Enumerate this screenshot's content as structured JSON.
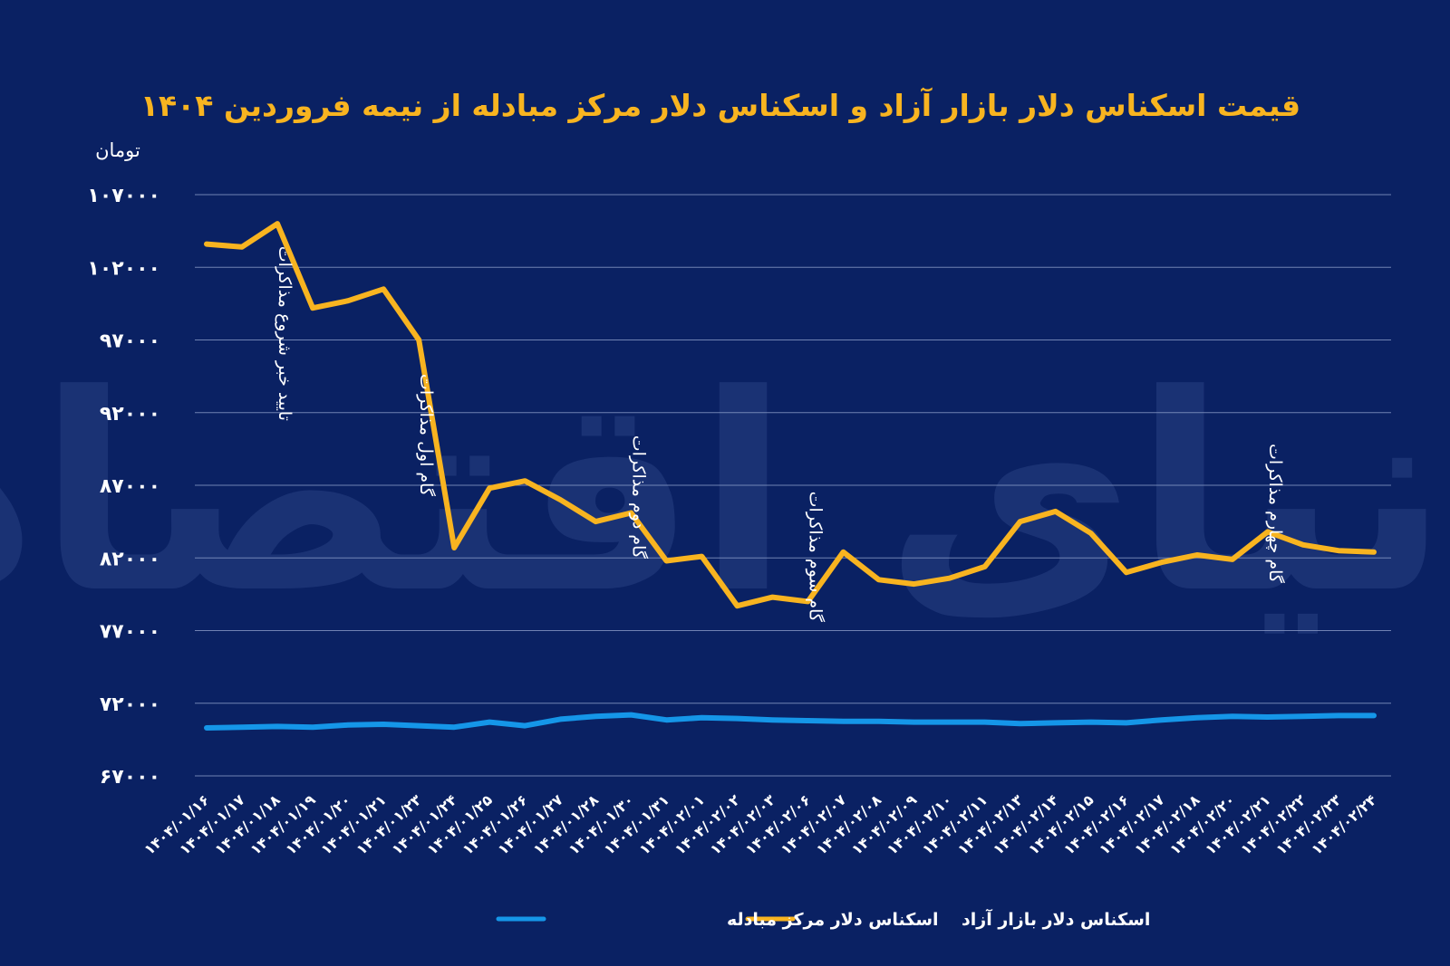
{
  "chart_data": {
    "type": "line",
    "title": "قیمت اسکناس دلار بازار آزاد و اسکناس دلار مرکز مبادله از نیمه فروردین ۱۴۰۴",
    "ylabel": "تومان",
    "xlabel": "",
    "ylim": [
      67000,
      107000
    ],
    "yticks": [
      67000,
      72000,
      77000,
      82000,
      87000,
      92000,
      97000,
      102000,
      107000
    ],
    "ytick_labels": [
      "۶۷۰۰۰",
      "۷۲۰۰۰",
      "۷۷۰۰۰",
      "۸۲۰۰۰",
      "۸۷۰۰۰",
      "۹۲۰۰۰",
      "۹۷۰۰۰",
      "۱۰۲۰۰۰",
      "۱۰۷۰۰۰"
    ],
    "grid": true,
    "legend_position": "bottom",
    "categories": [
      "۱۴۰۴/۰۱/۱۶",
      "۱۴۰۴/۰۱/۱۷",
      "۱۴۰۴/۰۱/۱۸",
      "۱۴۰۴/۰۱/۱۹",
      "۱۴۰۴/۰۱/۲۰",
      "۱۴۰۴/۰۱/۲۱",
      "۱۴۰۴/۰۱/۲۳",
      "۱۴۰۴/۰۱/۲۴",
      "۱۴۰۴/۰۱/۲۵",
      "۱۴۰۴/۰۱/۲۶",
      "۱۴۰۴/۰۱/۲۷",
      "۱۴۰۴/۰۱/۲۸",
      "۱۴۰۴/۰۱/۳۰",
      "۱۴۰۴/۰۱/۳۱",
      "۱۴۰۴/۰۲/۰۱",
      "۱۴۰۴/۰۲/۰۲",
      "۱۴۰۴/۰۲/۰۳",
      "۱۴۰۴/۰۲/۰۶",
      "۱۴۰۴/۰۲/۰۷",
      "۱۴۰۴/۰۲/۰۸",
      "۱۴۰۴/۰۲/۰۹",
      "۱۴۰۴/۰۲/۱۰",
      "۱۴۰۴/۰۲/۱۱",
      "۱۴۰۴/۰۲/۱۳",
      "۱۴۰۴/۰۲/۱۴",
      "۱۴۰۴/۰۲/۱۵",
      "۱۴۰۴/۰۲/۱۶",
      "۱۴۰۴/۰۲/۱۷",
      "۱۴۰۴/۰۲/۱۸",
      "۱۴۰۴/۰۲/۲۰",
      "۱۴۰۴/۰۲/۲۱",
      "۱۴۰۴/۰۲/۲۲",
      "۱۴۰۴/۰۲/۲۳",
      "۱۴۰۴/۰۲/۲۴"
    ],
    "series": [
      {
        "name": "اسکناس دلار بازار آزاد",
        "color": "#f8b420",
        "values": [
          103600,
          103400,
          105000,
          99200,
          99700,
          100500,
          97000,
          82700,
          86800,
          87300,
          86000,
          84500,
          85100,
          81800,
          82100,
          78700,
          79300,
          79000,
          82400,
          80500,
          80200,
          80600,
          81400,
          84500,
          85200,
          83700,
          81000,
          81700,
          82200,
          81900,
          83800,
          82900,
          82500,
          82400
        ]
      },
      {
        "name": "اسکناس دلار مرکز مبادله",
        "color": "#1596e8",
        "values": [
          70300,
          70350,
          70400,
          70350,
          70500,
          70550,
          70450,
          70350,
          70700,
          70450,
          70900,
          71100,
          71200,
          70850,
          71000,
          70950,
          70850,
          70800,
          70750,
          70750,
          70700,
          70700,
          70700,
          70600,
          70650,
          70700,
          70650,
          70850,
          71000,
          71100,
          71050,
          71100,
          71150,
          71150
        ]
      }
    ],
    "annotations": [
      {
        "text": "تایید خبر شروع مذاکرات",
        "category_index": 2
      },
      {
        "text": "گام اول مذاکرات",
        "category_index": 6
      },
      {
        "text": "گام دوم مذاکرات",
        "category_index": 12
      },
      {
        "text": "گام سوم مذاکرات",
        "category_index": 17
      },
      {
        "text": "گام چهارم مذاکرات",
        "category_index": 30
      }
    ]
  },
  "legend": {
    "free_market": "اسکناس دلار بازار آزاد",
    "exchange_center": "اسکناس دلار مرکز مبادله"
  },
  "watermark": "دنیای اقتصاد"
}
